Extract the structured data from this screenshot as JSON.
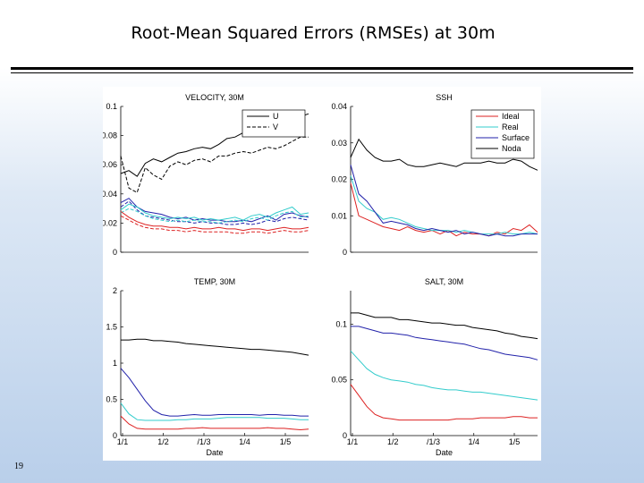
{
  "slide": {
    "title": "Root-Mean Squared Errors (RMSEs) at 30m",
    "page_number": "19"
  },
  "chart_data": [
    {
      "type": "line",
      "title": "VELOCITY, 30M",
      "xlabel": "",
      "ylim": [
        0,
        0.1
      ],
      "yticks": [
        "0",
        "0.02",
        "0.04",
        "0.06",
        "0.08",
        "0.1"
      ],
      "x_points": 24,
      "legend": [
        "U",
        "V"
      ],
      "legend_position": "top-right",
      "series": [
        {
          "name": "Noda U",
          "color": "#000000",
          "dash": false,
          "values": [
            0.054,
            0.056,
            0.052,
            0.061,
            0.064,
            0.062,
            0.065,
            0.068,
            0.069,
            0.071,
            0.072,
            0.071,
            0.074,
            0.078,
            0.079,
            0.082,
            0.084,
            0.083,
            0.086,
            0.089,
            0.089,
            0.09,
            0.093,
            0.095
          ]
        },
        {
          "name": "Noda V",
          "color": "#000000",
          "dash": true,
          "values": [
            0.066,
            0.044,
            0.041,
            0.058,
            0.053,
            0.05,
            0.059,
            0.062,
            0.06,
            0.063,
            0.064,
            0.062,
            0.066,
            0.066,
            0.068,
            0.069,
            0.068,
            0.07,
            0.072,
            0.071,
            0.073,
            0.076,
            0.079,
            0.079
          ]
        },
        {
          "name": "Surface U",
          "color": "#2222aa",
          "dash": false,
          "values": [
            0.034,
            0.037,
            0.031,
            0.028,
            0.027,
            0.026,
            0.024,
            0.023,
            0.024,
            0.022,
            0.023,
            0.022,
            0.022,
            0.021,
            0.021,
            0.022,
            0.021,
            0.023,
            0.025,
            0.022,
            0.026,
            0.027,
            0.025,
            0.024
          ]
        },
        {
          "name": "Surface V",
          "color": "#2222aa",
          "dash": true,
          "values": [
            0.031,
            0.035,
            0.029,
            0.025,
            0.024,
            0.023,
            0.022,
            0.021,
            0.021,
            0.02,
            0.021,
            0.02,
            0.02,
            0.019,
            0.019,
            0.02,
            0.019,
            0.02,
            0.022,
            0.021,
            0.023,
            0.024,
            0.023,
            0.022
          ]
        },
        {
          "name": "Real U",
          "color": "#33cccc",
          "dash": false,
          "values": [
            0.029,
            0.033,
            0.031,
            0.027,
            0.025,
            0.024,
            0.023,
            0.024,
            0.023,
            0.024,
            0.022,
            0.023,
            0.022,
            0.023,
            0.024,
            0.022,
            0.025,
            0.026,
            0.024,
            0.027,
            0.029,
            0.031,
            0.026,
            0.027
          ]
        },
        {
          "name": "Real V",
          "color": "#33cccc",
          "dash": true,
          "values": [
            0.027,
            0.03,
            0.028,
            0.025,
            0.023,
            0.022,
            0.021,
            0.022,
            0.021,
            0.022,
            0.021,
            0.021,
            0.02,
            0.021,
            0.022,
            0.021,
            0.023,
            0.024,
            0.022,
            0.025,
            0.027,
            0.028,
            0.024,
            0.025
          ]
        },
        {
          "name": "Ideal U",
          "color": "#dd2222",
          "dash": false,
          "values": [
            0.028,
            0.024,
            0.021,
            0.019,
            0.018,
            0.018,
            0.017,
            0.017,
            0.016,
            0.017,
            0.016,
            0.016,
            0.017,
            0.016,
            0.016,
            0.015,
            0.016,
            0.016,
            0.015,
            0.016,
            0.017,
            0.016,
            0.016,
            0.017
          ]
        },
        {
          "name": "Ideal V",
          "color": "#dd2222",
          "dash": true,
          "values": [
            0.025,
            0.022,
            0.019,
            0.017,
            0.016,
            0.016,
            0.015,
            0.015,
            0.014,
            0.015,
            0.014,
            0.014,
            0.014,
            0.014,
            0.013,
            0.013,
            0.014,
            0.014,
            0.013,
            0.014,
            0.015,
            0.014,
            0.014,
            0.015
          ]
        }
      ]
    },
    {
      "type": "line",
      "title": "SSH",
      "xlabel": "",
      "ylim": [
        0,
        0.04
      ],
      "yticks": [
        "0",
        "0.01",
        "0.02",
        "0.03",
        "0.04"
      ],
      "x_points": 24,
      "legend": [
        "Ideal",
        "Real",
        "Surface",
        "Noda"
      ],
      "legend_position": "top-right",
      "series": [
        {
          "name": "Ideal",
          "color": "#dd2222",
          "dash": false,
          "values": [
            0.019,
            0.01,
            0.009,
            0.008,
            0.007,
            0.0065,
            0.006,
            0.007,
            0.006,
            0.0055,
            0.006,
            0.005,
            0.006,
            0.0045,
            0.0055,
            0.005,
            0.005,
            0.0045,
            0.0055,
            0.005,
            0.0065,
            0.006,
            0.0075,
            0.0055
          ]
        },
        {
          "name": "Real",
          "color": "#33cccc",
          "dash": false,
          "values": [
            0.021,
            0.014,
            0.012,
            0.011,
            0.009,
            0.0095,
            0.009,
            0.008,
            0.007,
            0.0065,
            0.006,
            0.006,
            0.006,
            0.0055,
            0.006,
            0.0055,
            0.005,
            0.005,
            0.005,
            0.0055,
            0.005,
            0.005,
            0.0055,
            0.005
          ]
        },
        {
          "name": "Surface",
          "color": "#2222aa",
          "dash": false,
          "values": [
            0.024,
            0.016,
            0.014,
            0.011,
            0.008,
            0.0085,
            0.008,
            0.0075,
            0.0065,
            0.006,
            0.0065,
            0.006,
            0.0055,
            0.006,
            0.005,
            0.0055,
            0.005,
            0.0045,
            0.005,
            0.0045,
            0.0045,
            0.005,
            0.005,
            0.005
          ]
        },
        {
          "name": "Noda",
          "color": "#000000",
          "dash": false,
          "values": [
            0.026,
            0.031,
            0.028,
            0.026,
            0.025,
            0.025,
            0.0255,
            0.024,
            0.0235,
            0.0235,
            0.024,
            0.0245,
            0.024,
            0.0235,
            0.0245,
            0.0245,
            0.0245,
            0.025,
            0.0245,
            0.0245,
            0.0255,
            0.025,
            0.0235,
            0.0225
          ]
        }
      ]
    },
    {
      "type": "line",
      "title": "TEMP, 30M",
      "xlabel": "Date",
      "ylim": [
        0,
        2
      ],
      "yticks": [
        "0",
        "0.5",
        "1",
        "1.5",
        "2"
      ],
      "xticks": [
        "1/1",
        "1/2",
        "/1/3",
        "1/4",
        "1/5"
      ],
      "x_points": 24,
      "series": [
        {
          "name": "Noda",
          "color": "#000000",
          "dash": false,
          "values": [
            1.32,
            1.32,
            1.33,
            1.33,
            1.31,
            1.31,
            1.3,
            1.29,
            1.27,
            1.26,
            1.25,
            1.24,
            1.23,
            1.22,
            1.21,
            1.2,
            1.19,
            1.19,
            1.18,
            1.17,
            1.16,
            1.15,
            1.13,
            1.11
          ]
        },
        {
          "name": "Surface",
          "color": "#2222aa",
          "dash": false,
          "values": [
            0.93,
            0.8,
            0.64,
            0.48,
            0.35,
            0.29,
            0.27,
            0.27,
            0.28,
            0.29,
            0.28,
            0.28,
            0.29,
            0.29,
            0.29,
            0.29,
            0.29,
            0.28,
            0.29,
            0.29,
            0.28,
            0.28,
            0.27,
            0.27
          ]
        },
        {
          "name": "Real",
          "color": "#33cccc",
          "dash": false,
          "values": [
            0.45,
            0.3,
            0.22,
            0.21,
            0.21,
            0.21,
            0.21,
            0.22,
            0.22,
            0.23,
            0.23,
            0.23,
            0.24,
            0.25,
            0.25,
            0.25,
            0.25,
            0.25,
            0.24,
            0.24,
            0.24,
            0.23,
            0.22,
            0.22
          ]
        },
        {
          "name": "Ideal",
          "color": "#dd2222",
          "dash": false,
          "values": [
            0.27,
            0.16,
            0.1,
            0.09,
            0.09,
            0.09,
            0.09,
            0.09,
            0.1,
            0.1,
            0.11,
            0.1,
            0.1,
            0.1,
            0.1,
            0.1,
            0.1,
            0.1,
            0.11,
            0.1,
            0.1,
            0.09,
            0.08,
            0.09
          ]
        }
      ]
    },
    {
      "type": "line",
      "title": "SALT, 30M",
      "xlabel": "Date",
      "ylim": [
        0,
        0.13
      ],
      "yticks": [
        "0",
        "0.05",
        "0.1"
      ],
      "xticks": [
        "1/1",
        "1/2",
        "/1/3",
        "1/4",
        "1/5"
      ],
      "x_points": 24,
      "series": [
        {
          "name": "Noda",
          "color": "#000000",
          "dash": false,
          "values": [
            0.11,
            0.11,
            0.108,
            0.106,
            0.106,
            0.106,
            0.104,
            0.104,
            0.103,
            0.102,
            0.101,
            0.101,
            0.1,
            0.099,
            0.099,
            0.097,
            0.096,
            0.095,
            0.094,
            0.092,
            0.091,
            0.089,
            0.088,
            0.087
          ]
        },
        {
          "name": "Surface",
          "color": "#2222aa",
          "dash": false,
          "values": [
            0.098,
            0.098,
            0.096,
            0.094,
            0.092,
            0.092,
            0.091,
            0.09,
            0.088,
            0.087,
            0.086,
            0.085,
            0.084,
            0.083,
            0.082,
            0.08,
            0.078,
            0.077,
            0.075,
            0.073,
            0.072,
            0.071,
            0.07,
            0.068
          ]
        },
        {
          "name": "Real",
          "color": "#33cccc",
          "dash": false,
          "values": [
            0.076,
            0.068,
            0.06,
            0.055,
            0.052,
            0.05,
            0.049,
            0.048,
            0.046,
            0.045,
            0.043,
            0.042,
            0.041,
            0.041,
            0.04,
            0.039,
            0.039,
            0.038,
            0.037,
            0.036,
            0.035,
            0.034,
            0.033,
            0.032
          ]
        },
        {
          "name": "Ideal",
          "color": "#dd2222",
          "dash": false,
          "values": [
            0.046,
            0.036,
            0.026,
            0.019,
            0.016,
            0.015,
            0.014,
            0.014,
            0.014,
            0.014,
            0.014,
            0.014,
            0.014,
            0.015,
            0.015,
            0.015,
            0.016,
            0.016,
            0.016,
            0.016,
            0.017,
            0.017,
            0.016,
            0.016
          ]
        }
      ]
    }
  ]
}
